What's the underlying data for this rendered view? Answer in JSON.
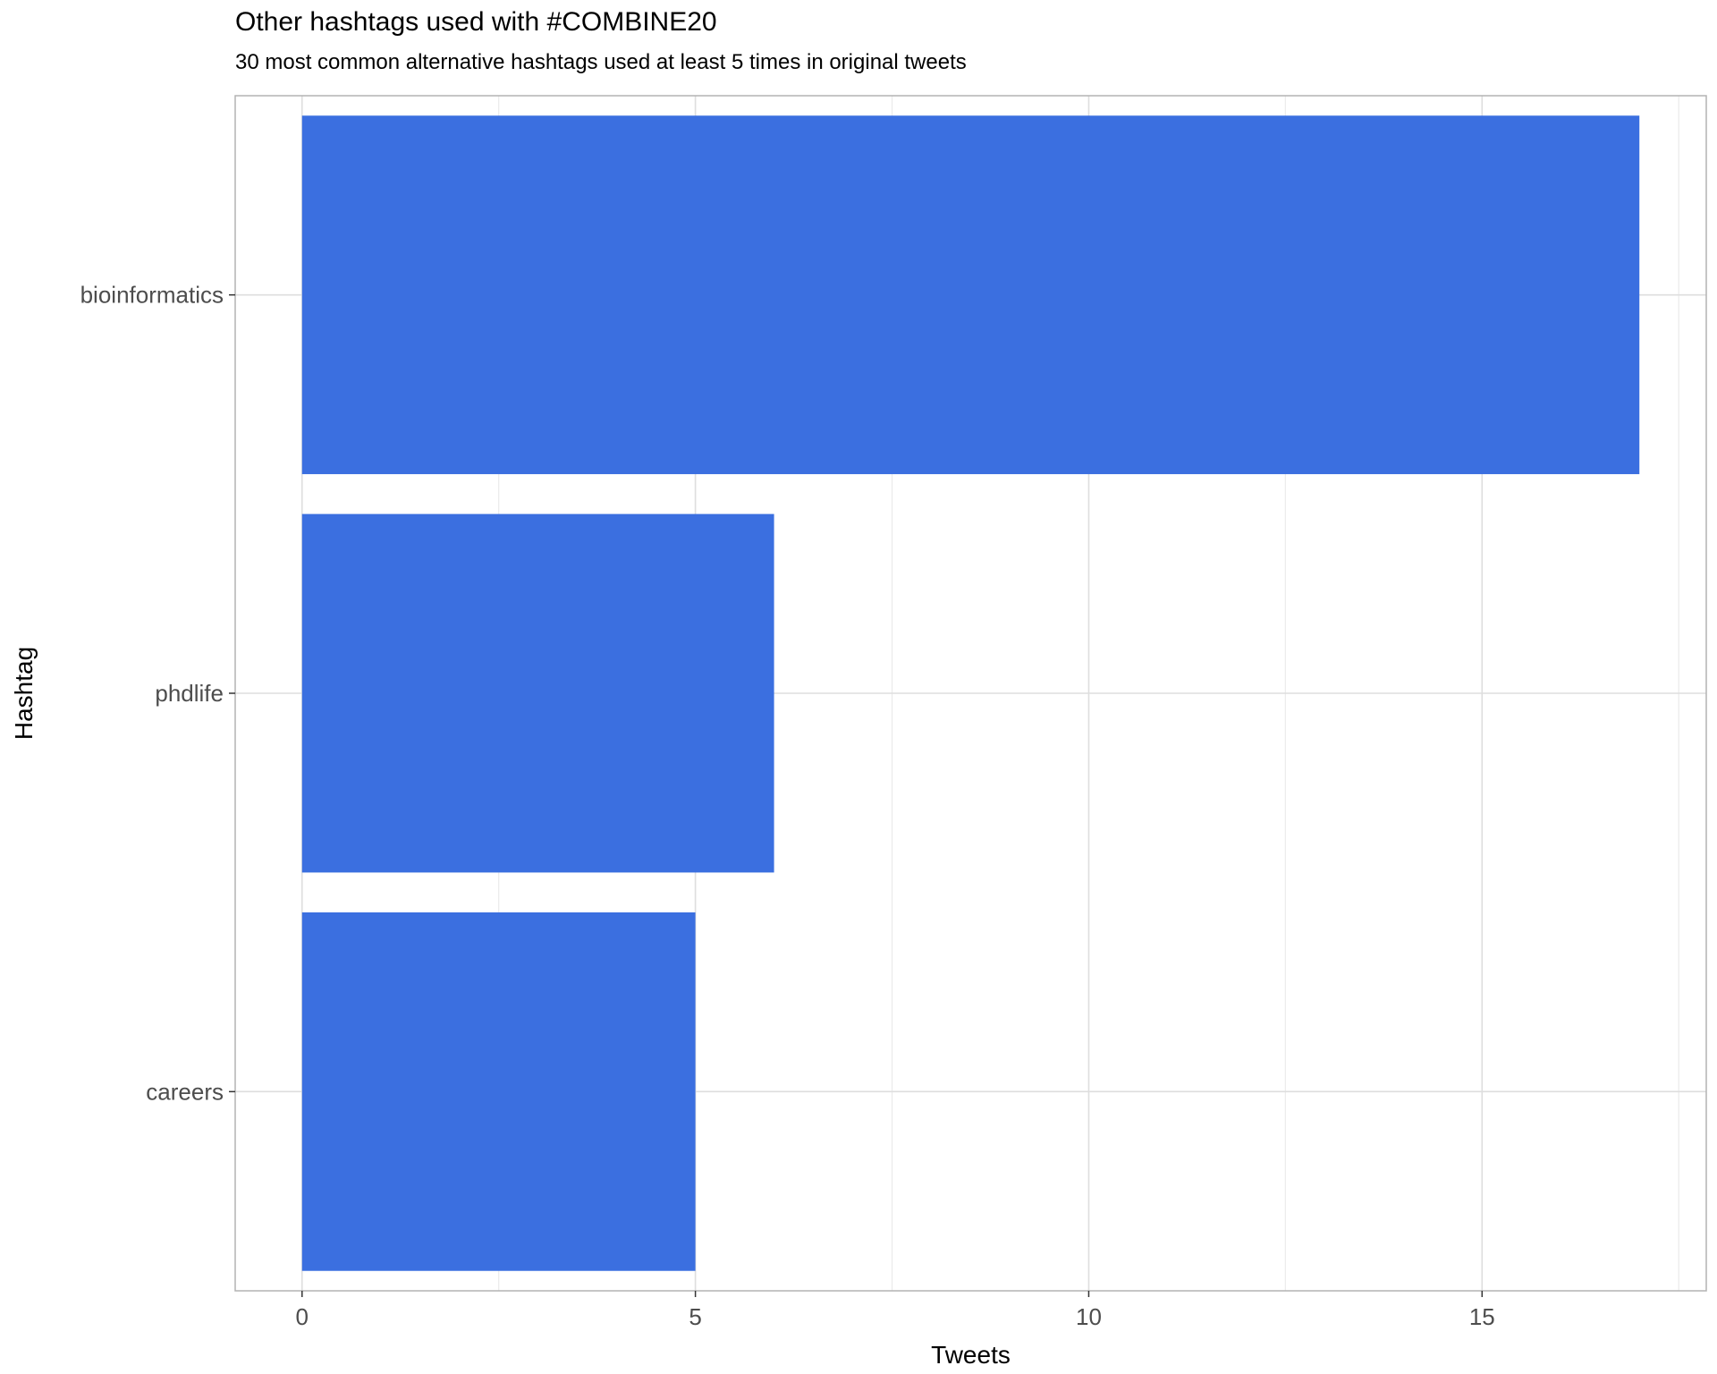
{
  "chart_data": {
    "type": "bar",
    "orientation": "horizontal",
    "title": "Other hashtags used with #COMBINE20",
    "subtitle": "30 most common alternative hashtags used at least 5 times in original tweets",
    "xlabel": "Tweets",
    "ylabel": "Hashtag",
    "categories": [
      "bioinformatics",
      "phdlife",
      "careers"
    ],
    "values": [
      17,
      6,
      5
    ],
    "xlim": [
      -0.85,
      17.85
    ],
    "xticks": [
      0,
      5,
      10,
      15
    ],
    "grid": true,
    "bar_color": "#3b6fe0"
  }
}
